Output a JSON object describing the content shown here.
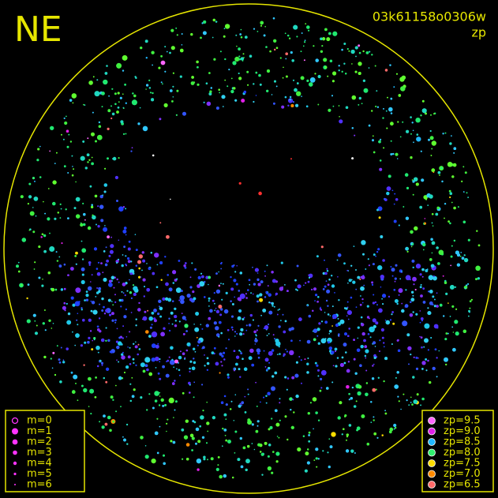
{
  "header": {
    "direction": "NE",
    "frame_id": "03k61158o0306w",
    "mode": "zp"
  },
  "magnitude_legend": [
    {
      "label": "m=0"
    },
    {
      "label": "m=1"
    },
    {
      "label": "m=2"
    },
    {
      "label": "m=3"
    },
    {
      "label": "m=4"
    },
    {
      "label": "m=5"
    },
    {
      "label": "m=6"
    }
  ],
  "zp_legend": [
    {
      "label": "zp=9.5",
      "color": "#ff66ff"
    },
    {
      "label": "zp=9.0",
      "color": "#e020e8"
    },
    {
      "label": "zp=8.5",
      "color": "#20b8ff"
    },
    {
      "label": "zp=8.0",
      "color": "#30f070"
    },
    {
      "label": "zp=7.5",
      "color": "#ffdd00"
    },
    {
      "label": "zp=7.0",
      "color": "#ff8a00"
    },
    {
      "label": "zp=6.5",
      "color": "#ff6a6a"
    }
  ]
}
